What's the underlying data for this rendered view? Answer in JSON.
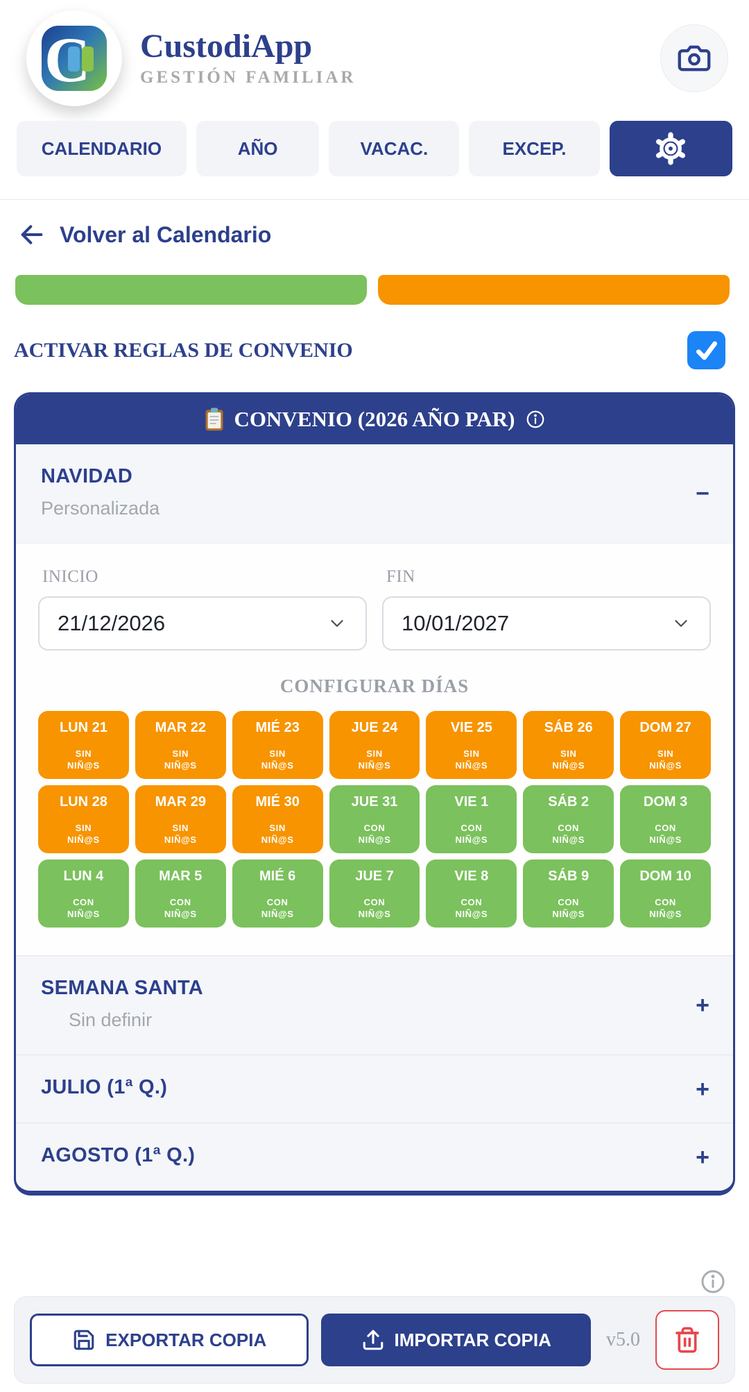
{
  "colors": {
    "navy": "#2D408C",
    "sin": "#F79400",
    "con": "#7BC15D",
    "legend_green": "#7BC15D",
    "legend_orange": "#F79400",
    "checkbox_blue": "#1B84F7",
    "danger_red": "#E5484D"
  },
  "header": {
    "app_title": "CustodiApp",
    "app_subtitle": "GESTIÓN FAMILIAR"
  },
  "tabs": {
    "items": [
      {
        "label": "CALENDARIO"
      },
      {
        "label": "AÑO"
      },
      {
        "label": "VACAC."
      },
      {
        "label": "EXCEP."
      }
    ]
  },
  "back": {
    "label": "Volver al Calendario"
  },
  "convenio_toggle": {
    "label": "ACTIVAR REGLAS DE CONVENIO",
    "checked": true
  },
  "convenio": {
    "title": "CONVENIO (2026 AÑO PAR)",
    "navidad": {
      "title": "NAVIDAD",
      "subtitle": "Personalizada",
      "collapse_symbol": "−",
      "inicio_label": "INICIO",
      "inicio_value": "21/12/2026",
      "fin_label": "FIN",
      "fin_value": "10/01/2027",
      "configurar_label": "CONFIGURAR DÍAS",
      "days": [
        {
          "label": "LUN 21",
          "type": "sin",
          "status_line1": "SIN",
          "status_line2": "NIÑ@S"
        },
        {
          "label": "MAR 22",
          "type": "sin",
          "status_line1": "SIN",
          "status_line2": "NIÑ@S"
        },
        {
          "label": "MIÉ 23",
          "type": "sin",
          "status_line1": "SIN",
          "status_line2": "NIÑ@S"
        },
        {
          "label": "JUE 24",
          "type": "sin",
          "status_line1": "SIN",
          "status_line2": "NIÑ@S"
        },
        {
          "label": "VIE 25",
          "type": "sin",
          "status_line1": "SIN",
          "status_line2": "NIÑ@S"
        },
        {
          "label": "SÁB 26",
          "type": "sin",
          "status_line1": "SIN",
          "status_line2": "NIÑ@S"
        },
        {
          "label": "DOM 27",
          "type": "sin",
          "status_line1": "SIN",
          "status_line2": "NIÑ@S"
        },
        {
          "label": "LUN 28",
          "type": "sin",
          "status_line1": "SIN",
          "status_line2": "NIÑ@S"
        },
        {
          "label": "MAR 29",
          "type": "sin",
          "status_line1": "SIN",
          "status_line2": "NIÑ@S"
        },
        {
          "label": "MIÉ 30",
          "type": "sin",
          "status_line1": "SIN",
          "status_line2": "NIÑ@S"
        },
        {
          "label": "JUE 31",
          "type": "con",
          "status_line1": "CON",
          "status_line2": "NIÑ@S"
        },
        {
          "label": "VIE 1",
          "type": "con",
          "status_line1": "CON",
          "status_line2": "NIÑ@S"
        },
        {
          "label": "SÁB 2",
          "type": "con",
          "status_line1": "CON",
          "status_line2": "NIÑ@S"
        },
        {
          "label": "DOM 3",
          "type": "con",
          "status_line1": "CON",
          "status_line2": "NIÑ@S"
        },
        {
          "label": "LUN 4",
          "type": "con",
          "status_line1": "CON",
          "status_line2": "NIÑ@S"
        },
        {
          "label": "MAR 5",
          "type": "con",
          "status_line1": "CON",
          "status_line2": "NIÑ@S"
        },
        {
          "label": "MIÉ 6",
          "type": "con",
          "status_line1": "CON",
          "status_line2": "NIÑ@S"
        },
        {
          "label": "JUE 7",
          "type": "con",
          "status_line1": "CON",
          "status_line2": "NIÑ@S"
        },
        {
          "label": "VIE 8",
          "type": "con",
          "status_line1": "CON",
          "status_line2": "NIÑ@S"
        },
        {
          "label": "SÁB 9",
          "type": "con",
          "status_line1": "CON",
          "status_line2": "NIÑ@S"
        },
        {
          "label": "DOM 10",
          "type": "con",
          "status_line1": "CON",
          "status_line2": "NIÑ@S"
        }
      ]
    },
    "sections": [
      {
        "title": "SEMANA SANTA",
        "subtitle": "Sin definir",
        "expand_symbol": "+"
      },
      {
        "title": "JULIO (1ª Q.)",
        "expand_symbol": "+"
      },
      {
        "title": "AGOSTO (1ª Q.)",
        "expand_symbol": "+"
      }
    ]
  },
  "footer": {
    "export_label": "EXPORTAR COPIA",
    "import_label": "IMPORTAR COPIA",
    "version": "v5.0"
  }
}
